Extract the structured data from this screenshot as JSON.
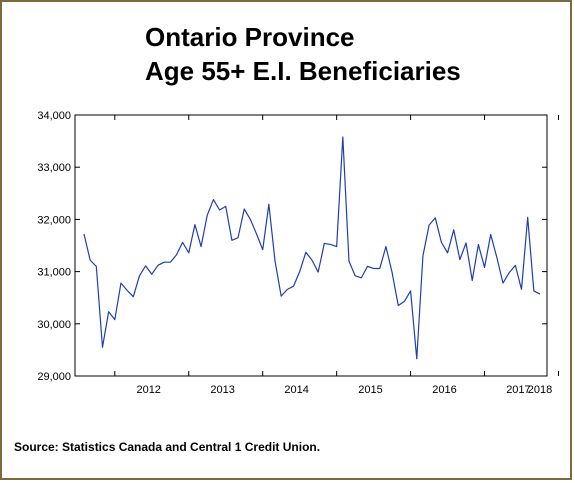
{
  "title_line1": "Ontario Province",
  "title_line2": "Age 55+ E.I. Beneficiaries",
  "source": "Source: Statistics Canada and Central 1 Credit Union.",
  "colors": {
    "line": "#1f3fb0",
    "frame": "#7b6a3a",
    "axis": "#000000"
  },
  "chart_data": {
    "type": "line",
    "title": "Ontario Province Age 55+ E.I. Beneficiaries",
    "xlabel": "",
    "ylabel": "",
    "ylim": [
      29000,
      34000
    ],
    "yticks": [
      "29,000",
      "30,000",
      "31,000",
      "32,000",
      "33,000",
      "34,000"
    ],
    "ytick_values": [
      29000,
      30000,
      31000,
      32000,
      33000,
      34000
    ],
    "xticks": [
      "2012",
      "2013",
      "2014",
      "2015",
      "2016",
      "2017",
      "2018"
    ],
    "x_start": "2011-08",
    "grid": false,
    "series": [
      {
        "values": [
          31720,
          31220,
          31100,
          29550,
          30230,
          30080,
          30780,
          30640,
          30520,
          30920,
          31110,
          30950,
          31120,
          31180,
          31180,
          31320,
          31560,
          31360,
          31900,
          31480,
          32080,
          32380,
          32180,
          32250,
          31600,
          31650,
          32200,
          32000,
          31720,
          31420,
          32290,
          31200,
          30530,
          30660,
          30720,
          31000,
          31370,
          31220,
          30990,
          31540,
          31520,
          31480,
          33580,
          31200,
          30920,
          30880,
          31100,
          31060,
          31060,
          31480,
          30980,
          30350,
          30430,
          30630,
          29330,
          31300,
          31890,
          32030,
          31560,
          31360,
          31800,
          31230,
          31550,
          30830,
          31520,
          31080,
          31710,
          31270,
          30780,
          30980,
          31120,
          30660,
          32040,
          30630,
          30570
        ]
      }
    ]
  }
}
